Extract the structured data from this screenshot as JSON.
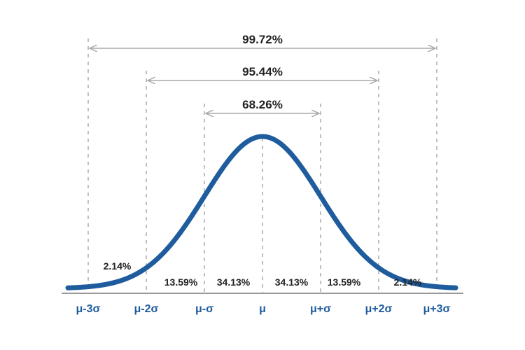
{
  "colors": {
    "curve": "#1f5c9e",
    "axis_label": "#1f5c9e",
    "guide": "#aaaaaa",
    "text": "#222222"
  },
  "axis_labels": [
    "μ-3σ",
    "μ-2σ",
    "μ-σ",
    "μ",
    "μ+σ",
    "μ+2σ",
    "μ+3σ"
  ],
  "spans": [
    {
      "label": "99.72%",
      "range_sigma": 3
    },
    {
      "label": "95.44%",
      "range_sigma": 2
    },
    {
      "label": "68.26%",
      "range_sigma": 1
    }
  ],
  "regions": [
    {
      "label": "2.14%",
      "from_sigma": -3,
      "to_sigma": -2
    },
    {
      "label": "13.59%",
      "from_sigma": -2,
      "to_sigma": -1
    },
    {
      "label": "34.13%",
      "from_sigma": -1,
      "to_sigma": 0
    },
    {
      "label": "34.13%",
      "from_sigma": 0,
      "to_sigma": 1
    },
    {
      "label": "13.59%",
      "from_sigma": 1,
      "to_sigma": 2
    },
    {
      "label": "2.14%",
      "from_sigma": 2,
      "to_sigma": 3
    }
  ]
}
